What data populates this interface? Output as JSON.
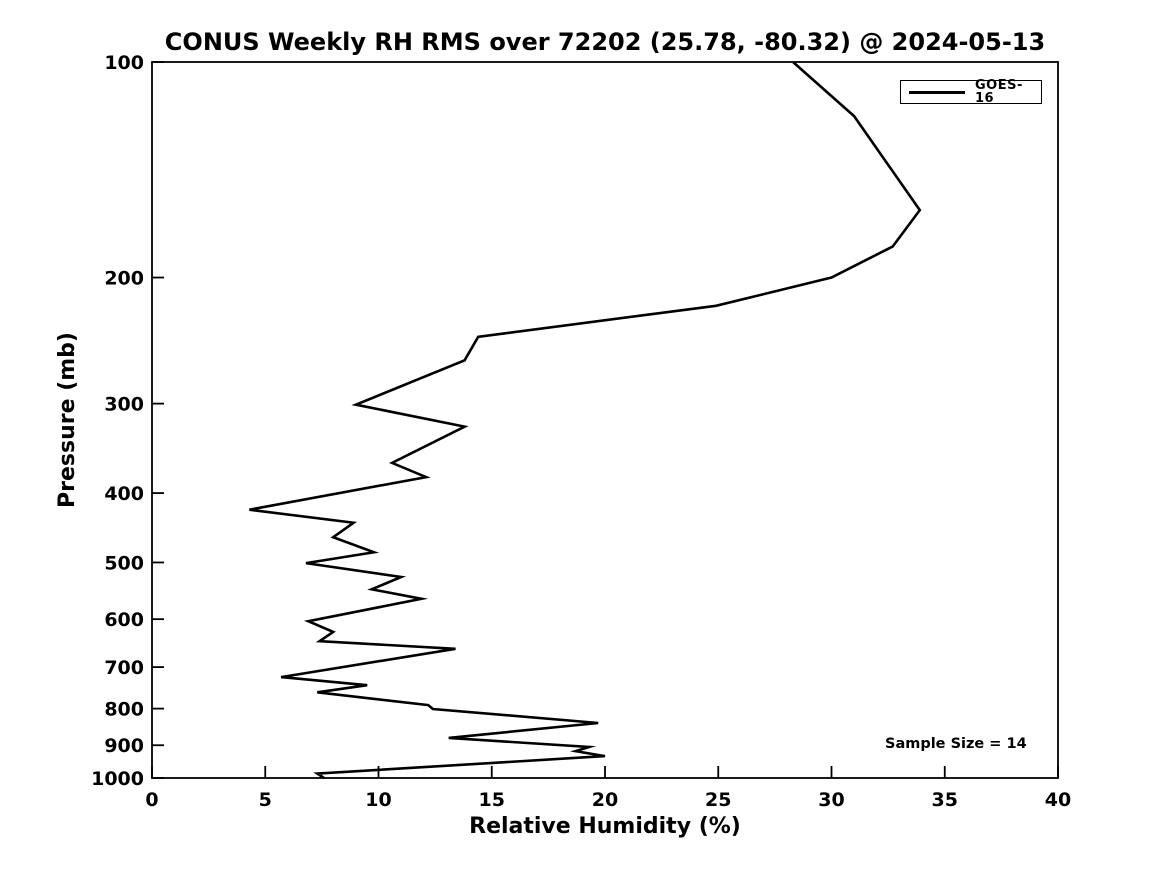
{
  "chart_data": {
    "type": "line",
    "title": "CONUS Weekly RH RMS over 72202 (25.78, -80.32) @ 2024-05-13",
    "xlabel": "Relative Humidity (%)",
    "ylabel": "Pressure (mb)",
    "xlim": [
      0,
      40
    ],
    "ylim": [
      100,
      1000
    ],
    "yscale": "log",
    "y_inverted": true,
    "grid": false,
    "tick_direction": "in",
    "x_ticks": [
      0,
      5,
      10,
      15,
      20,
      25,
      30,
      35,
      40
    ],
    "y_ticks": [
      100,
      200,
      300,
      400,
      500,
      600,
      700,
      800,
      900,
      1000
    ],
    "legend": {
      "position": "upper-right",
      "entries": [
        "GOES-16"
      ]
    },
    "annotation": "Sample Size = 14",
    "line_color": "#000000",
    "series": [
      {
        "name": "GOES-16",
        "color": "#000000",
        "points": [
          {
            "pressure": 100,
            "rh": 28.3
          },
          {
            "pressure": 119,
            "rh": 31.0
          },
          {
            "pressure": 161,
            "rh": 33.9
          },
          {
            "pressure": 181,
            "rh": 32.7
          },
          {
            "pressure": 200,
            "rh": 30.0
          },
          {
            "pressure": 219,
            "rh": 24.9
          },
          {
            "pressure": 242,
            "rh": 14.4
          },
          {
            "pressure": 261,
            "rh": 13.8
          },
          {
            "pressure": 301,
            "rh": 9.0
          },
          {
            "pressure": 323,
            "rh": 13.8
          },
          {
            "pressure": 363,
            "rh": 10.6
          },
          {
            "pressure": 380,
            "rh": 12.1
          },
          {
            "pressure": 422,
            "rh": 4.3
          },
          {
            "pressure": 440,
            "rh": 8.9
          },
          {
            "pressure": 461,
            "rh": 8.0
          },
          {
            "pressure": 484,
            "rh": 9.8
          },
          {
            "pressure": 501,
            "rh": 6.8
          },
          {
            "pressure": 524,
            "rh": 11.0
          },
          {
            "pressure": 545,
            "rh": 9.7
          },
          {
            "pressure": 562,
            "rh": 11.9
          },
          {
            "pressure": 604,
            "rh": 6.9
          },
          {
            "pressure": 625,
            "rh": 8.0
          },
          {
            "pressure": 644,
            "rh": 7.4
          },
          {
            "pressure": 660,
            "rh": 13.4
          },
          {
            "pressure": 723,
            "rh": 5.7
          },
          {
            "pressure": 742,
            "rh": 9.5
          },
          {
            "pressure": 759,
            "rh": 7.3
          },
          {
            "pressure": 791,
            "rh": 12.2
          },
          {
            "pressure": 801,
            "rh": 12.4
          },
          {
            "pressure": 838,
            "rh": 19.7
          },
          {
            "pressure": 879,
            "rh": 13.1
          },
          {
            "pressure": 905,
            "rh": 19.3
          },
          {
            "pressure": 917,
            "rh": 18.7
          },
          {
            "pressure": 932,
            "rh": 20.0
          },
          {
            "pressure": 986,
            "rh": 7.3
          },
          {
            "pressure": 1000,
            "rh": 7.6
          }
        ]
      }
    ]
  }
}
